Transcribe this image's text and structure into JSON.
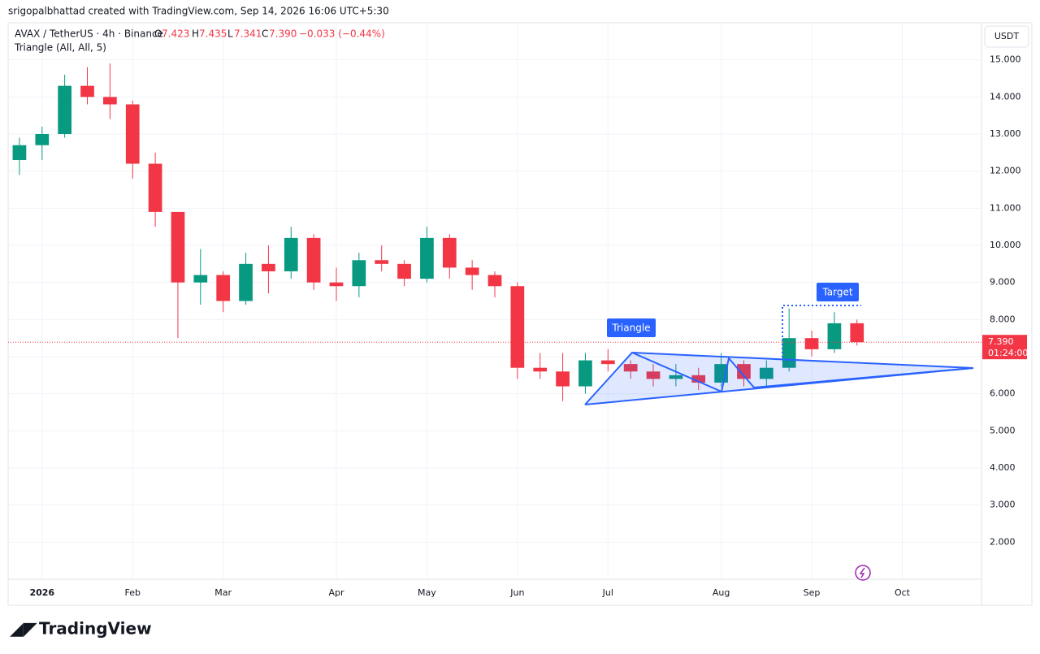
{
  "header": {
    "credit": "srigopalbhattad created with TradingView.com, Sep 14, 2026 16:06 UTC+5:30"
  },
  "legend": {
    "symbol": "AVAX / TetherUS · 4h · Binance",
    "open": {
      "label": "O",
      "value": "7.423"
    },
    "high": {
      "label": "H",
      "value": "7.435"
    },
    "low": {
      "label": "L",
      "value": "7.341"
    },
    "close": {
      "label": "C",
      "value": "7.390"
    },
    "change": "−0.033 (−0.44%)",
    "indicator": "Triangle (All, All, 5)"
  },
  "currency": "USDT",
  "annotations": {
    "triangle": "Triangle",
    "target": "Target"
  },
  "brand": "TradingView",
  "chart_data": {
    "type": "candlestick",
    "categories": [
      null,
      "2026",
      null,
      null,
      null,
      "Feb",
      null,
      null,
      null,
      "Mar",
      null,
      null,
      null,
      null,
      "Apr",
      null,
      null,
      null,
      "May",
      null,
      null,
      null,
      "Jun",
      null,
      null,
      null,
      "Jul",
      null,
      null,
      null,
      null,
      "Aug",
      null,
      null,
      null,
      "Sep",
      null,
      null,
      null,
      "Oct",
      null,
      null,
      null
    ],
    "open": [
      12.3,
      12.7,
      13.0,
      14.3,
      14.0,
      13.8,
      12.2,
      10.9,
      9.0,
      9.2,
      8.5,
      9.5,
      9.3,
      10.2,
      9.0,
      8.9,
      9.6,
      9.5,
      9.1,
      10.2,
      9.4,
      9.2,
      8.9,
      6.7,
      6.6,
      6.2,
      6.9,
      6.8,
      6.6,
      6.4,
      6.5,
      6.3,
      6.8,
      6.4,
      6.7,
      7.5,
      7.2,
      7.9,
      null,
      null,
      null,
      null,
      null
    ],
    "high": [
      12.9,
      13.2,
      14.6,
      14.8,
      14.9,
      13.9,
      12.5,
      10.9,
      9.9,
      9.3,
      9.8,
      10.0,
      10.5,
      10.3,
      9.4,
      9.8,
      10.0,
      9.6,
      10.5,
      10.3,
      9.6,
      9.3,
      9.0,
      7.1,
      7.1,
      7.1,
      7.2,
      6.9,
      6.8,
      6.8,
      6.7,
      7.1,
      6.9,
      6.9,
      8.3,
      7.7,
      8.2,
      8.0,
      null,
      null,
      null,
      null,
      null
    ],
    "low": [
      11.9,
      12.3,
      12.9,
      13.8,
      13.4,
      11.8,
      10.5,
      7.5,
      8.4,
      8.2,
      8.4,
      8.7,
      9.1,
      8.8,
      8.5,
      8.6,
      9.3,
      8.9,
      9.0,
      9.1,
      8.8,
      8.6,
      6.4,
      6.4,
      5.8,
      6.0,
      6.6,
      6.4,
      6.2,
      6.2,
      6.1,
      6.2,
      6.2,
      6.2,
      6.6,
      7.0,
      7.1,
      7.3,
      null,
      null,
      null,
      null,
      null
    ],
    "close": [
      12.7,
      13.0,
      14.3,
      14.0,
      13.8,
      12.2,
      10.9,
      9.0,
      9.2,
      8.5,
      9.5,
      9.3,
      10.2,
      9.0,
      8.9,
      9.6,
      9.5,
      9.1,
      10.2,
      9.4,
      9.2,
      8.9,
      6.7,
      6.6,
      6.2,
      6.9,
      6.8,
      6.6,
      6.4,
      6.5,
      6.3,
      6.8,
      6.4,
      6.7,
      7.5,
      7.2,
      7.9,
      7.39,
      null,
      null,
      null,
      null,
      null
    ],
    "up_color": "#089981",
    "down_color": "#f23645",
    "ylim": [
      1,
      16
    ],
    "yticks": [
      {
        "value": 2,
        "label": "2.000"
      },
      {
        "value": 3,
        "label": "3.000"
      },
      {
        "value": 4,
        "label": "4.000"
      },
      {
        "value": 5,
        "label": "5.000"
      },
      {
        "value": 6,
        "label": "6.000"
      },
      {
        "value": 7,
        "label": "7.000"
      },
      {
        "value": 8,
        "label": "8.000"
      },
      {
        "value": 9,
        "label": "9.000"
      },
      {
        "value": 10,
        "label": "10.000"
      },
      {
        "value": 11,
        "label": "11.000"
      },
      {
        "value": 12,
        "label": "12.000"
      },
      {
        "value": 13,
        "label": "13.000"
      },
      {
        "value": 14,
        "label": "14.000"
      },
      {
        "value": 15,
        "label": "15.000"
      }
    ],
    "last_price": {
      "value": 7.39,
      "label": "7.390"
    },
    "countdown": "01:24:00",
    "grid": true
  }
}
